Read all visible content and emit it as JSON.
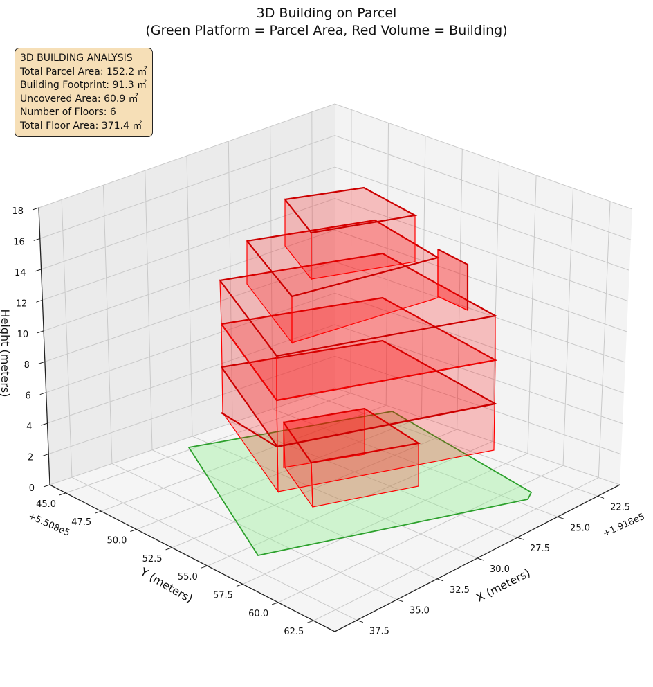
{
  "chart_data": {
    "type": "3d-polygons",
    "title_lines": [
      "3D Building on Parcel",
      "(Green Platform = Parcel Area, Red Volume = Building)"
    ],
    "axes": {
      "x": {
        "label": "X (meters)",
        "offset_label": "+1.918e5",
        "ticks": [
          "22.5",
          "25.0",
          "27.5",
          "30.0",
          "32.5",
          "35.0",
          "37.5"
        ]
      },
      "y": {
        "label": "Y (meters)",
        "offset_label": "+5.508e5",
        "ticks": [
          "45.0",
          "47.5",
          "50.0",
          "52.5",
          "55.0",
          "57.5",
          "60.0",
          "62.5"
        ]
      },
      "z": {
        "label": "Height (meters)",
        "ticks": [
          "0",
          "2",
          "4",
          "6",
          "8",
          "10",
          "12",
          "14",
          "16",
          "18"
        ],
        "zlim": [
          0,
          18
        ]
      }
    },
    "grid": true,
    "parcel": {
      "color": "#2ca02c",
      "fill": "#90ee90",
      "name": "Parcel Area",
      "height": 0
    },
    "building": {
      "color": "#ff0000",
      "name": "Building",
      "floors": 6,
      "floor_heights": [
        [
          0,
          3
        ],
        [
          3,
          6
        ],
        [
          6,
          9
        ],
        [
          9,
          12
        ],
        [
          12,
          15
        ],
        [
          15,
          18
        ]
      ]
    },
    "info": {
      "heading": "3D BUILDING ANALYSIS",
      "lines": [
        "Total Parcel Area: 152.2 ㎡",
        "Building Footprint: 91.3 ㎡",
        "Uncovered Area: 60.9 ㎡",
        "Number of Floors: 6",
        "Total Floor Area: 371.4 ㎡"
      ]
    }
  }
}
